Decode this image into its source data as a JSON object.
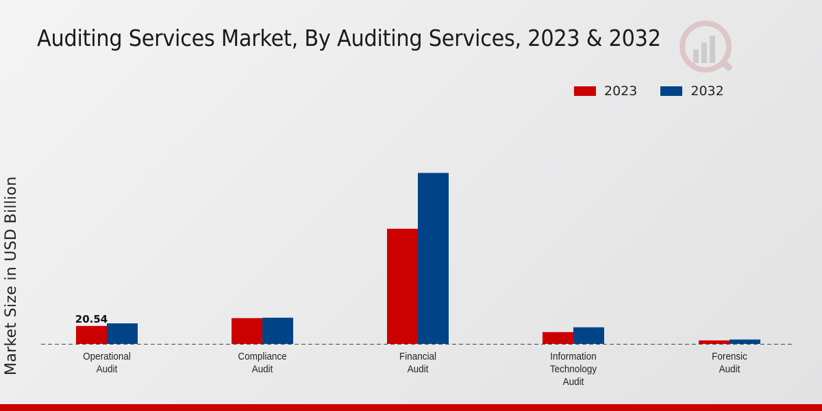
{
  "chart_data": {
    "type": "bar",
    "title": "Auditing Services Market, By Auditing Services, 2023 & 2032",
    "xlabel": "",
    "ylabel": "Market Size in USD Billion",
    "categories": [
      [
        "Operational",
        "Audit"
      ],
      [
        "Compliance",
        "Audit"
      ],
      [
        "Financial",
        "Audit"
      ],
      [
        "Information",
        "Technology",
        "Audit"
      ],
      [
        "Forensic",
        "Audit"
      ]
    ],
    "series": [
      {
        "name": "2023",
        "color": "#cc0000",
        "values": [
          20.54,
          29.5,
          132.0,
          13.5,
          4.0
        ]
      },
      {
        "name": "2032",
        "color": "#004488",
        "values": [
          23.5,
          30.0,
          196.0,
          19.0,
          5.0
        ]
      }
    ],
    "data_labels": [
      {
        "series": 0,
        "index": 0,
        "text": "20.54"
      }
    ],
    "ylim": [
      0,
      300
    ],
    "grid": false,
    "legend_position": "top-right"
  }
}
